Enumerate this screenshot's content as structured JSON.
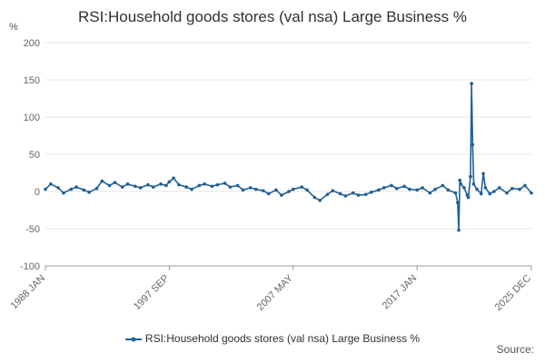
{
  "title": "RSI:Household goods stores (val nsa) Large Business %",
  "source_label": "Source:",
  "chart_data": {
    "type": "line",
    "title": "RSI:Household goods stores (val nsa) Large Business %",
    "y_unit_label": "%",
    "ylim": [
      -100,
      200
    ],
    "y_ticks": [
      200,
      150,
      100,
      50,
      0,
      -50,
      -100
    ],
    "x_ticks": [
      "1988 JAN",
      "1997 SEP",
      "2007 MAY",
      "2017 JAN",
      "2025 DEC"
    ],
    "grid": true,
    "legend_position": "bottom",
    "series": [
      {
        "name": "RSI:Household goods stores (val nsa) Large Business %",
        "color": "#206095",
        "points": [
          [
            "1988-01",
            3
          ],
          [
            "1988-06",
            10
          ],
          [
            "1989-01",
            5
          ],
          [
            "1989-06",
            -2
          ],
          [
            "1990-01",
            3
          ],
          [
            "1990-06",
            6
          ],
          [
            "1991-01",
            2
          ],
          [
            "1991-06",
            -1
          ],
          [
            "1992-01",
            4
          ],
          [
            "1992-06",
            14
          ],
          [
            "1993-01",
            8
          ],
          [
            "1993-06",
            12
          ],
          [
            "1994-01",
            6
          ],
          [
            "1994-06",
            10
          ],
          [
            "1995-01",
            7
          ],
          [
            "1995-06",
            5
          ],
          [
            "1996-01",
            9
          ],
          [
            "1996-06",
            6
          ],
          [
            "1997-01",
            10
          ],
          [
            "1997-06",
            8
          ],
          [
            "1997-09",
            13
          ],
          [
            "1998-01",
            18
          ],
          [
            "1998-06",
            9
          ],
          [
            "1999-01",
            6
          ],
          [
            "1999-06",
            3
          ],
          [
            "2000-01",
            8
          ],
          [
            "2000-06",
            10
          ],
          [
            "2001-01",
            7
          ],
          [
            "2001-06",
            9
          ],
          [
            "2002-01",
            11
          ],
          [
            "2002-06",
            6
          ],
          [
            "2003-01",
            8
          ],
          [
            "2003-06",
            2
          ],
          [
            "2004-01",
            5
          ],
          [
            "2004-06",
            3
          ],
          [
            "2005-01",
            1
          ],
          [
            "2005-06",
            -3
          ],
          [
            "2006-01",
            2
          ],
          [
            "2006-06",
            -5
          ],
          [
            "2007-01",
            0
          ],
          [
            "2007-05",
            3
          ],
          [
            "2008-01",
            6
          ],
          [
            "2008-06",
            2
          ],
          [
            "2009-01",
            -8
          ],
          [
            "2009-06",
            -12
          ],
          [
            "2010-01",
            -4
          ],
          [
            "2010-06",
            1
          ],
          [
            "2011-01",
            -3
          ],
          [
            "2011-06",
            -6
          ],
          [
            "2012-01",
            -2
          ],
          [
            "2012-06",
            -5
          ],
          [
            "2013-01",
            -4
          ],
          [
            "2013-06",
            -1
          ],
          [
            "2014-01",
            2
          ],
          [
            "2014-06",
            5
          ],
          [
            "2015-01",
            8
          ],
          [
            "2015-06",
            4
          ],
          [
            "2016-01",
            7
          ],
          [
            "2016-06",
            3
          ],
          [
            "2017-01",
            2
          ],
          [
            "2017-06",
            5
          ],
          [
            "2018-01",
            -2
          ],
          [
            "2018-06",
            3
          ],
          [
            "2019-01",
            8
          ],
          [
            "2019-06",
            2
          ],
          [
            "2020-01",
            -2
          ],
          [
            "2020-03",
            -15
          ],
          [
            "2020-04",
            -52
          ],
          [
            "2020-05",
            15
          ],
          [
            "2020-06",
            10
          ],
          [
            "2020-09",
            5
          ],
          [
            "2020-12",
            -5
          ],
          [
            "2021-01",
            -8
          ],
          [
            "2021-03",
            20
          ],
          [
            "2021-04",
            145
          ],
          [
            "2021-05",
            63
          ],
          [
            "2021-06",
            10
          ],
          [
            "2021-09",
            3
          ],
          [
            "2022-01",
            -3
          ],
          [
            "2022-03",
            24
          ],
          [
            "2022-05",
            5
          ],
          [
            "2022-09",
            -3
          ],
          [
            "2023-01",
            0
          ],
          [
            "2023-06",
            5
          ],
          [
            "2024-01",
            -2
          ],
          [
            "2024-06",
            4
          ],
          [
            "2025-01",
            3
          ],
          [
            "2025-06",
            8
          ],
          [
            "2025-12",
            -2
          ]
        ]
      }
    ]
  }
}
